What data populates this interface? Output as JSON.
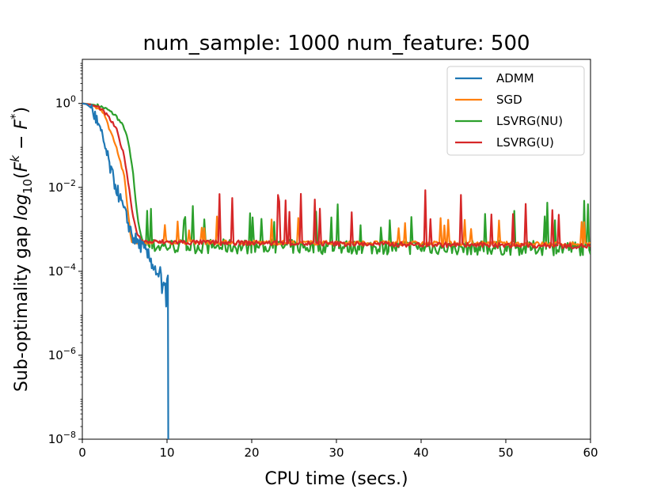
{
  "chart_data": {
    "type": "line",
    "title": "num_sample: 1000 num_feature: 500",
    "xlabel": "CPU time (secs.)",
    "ylabel_prefix": "Sub-optimality gap ",
    "ylabel_math": "log10(F^k − F^*)",
    "xlim": [
      0,
      60
    ],
    "ylim_log10": [
      -8,
      1.05
    ],
    "xticks": [
      0,
      10,
      20,
      30,
      40,
      50,
      60
    ],
    "yticks_exp": [
      0,
      -2,
      -4,
      -6,
      -8
    ],
    "legend_position": "top-right",
    "series": [
      {
        "name": "ADMM",
        "color": "#1f77b4",
        "style": "admm",
        "points": [
          [
            0,
            0
          ],
          [
            0.5,
            -0.02
          ],
          [
            1,
            -0.1
          ],
          [
            1.5,
            -0.3
          ],
          [
            2,
            -0.6
          ],
          [
            2.5,
            -0.9
          ],
          [
            3,
            -1.3
          ],
          [
            3.5,
            -1.7
          ],
          [
            4,
            -2.0
          ],
          [
            4.5,
            -2.3
          ],
          [
            5,
            -2.6
          ],
          [
            5.5,
            -2.9
          ],
          [
            6,
            -3.2
          ],
          [
            7,
            -3.4
          ],
          [
            8,
            -3.7
          ],
          [
            9,
            -4.1
          ],
          [
            9.5,
            -4.4
          ],
          [
            10,
            -4.7
          ],
          [
            10.1,
            -8.2
          ]
        ]
      },
      {
        "name": "SGD",
        "color": "#ff7f0e",
        "style": "sgd",
        "points": [
          [
            0,
            0
          ],
          [
            1,
            -0.03
          ],
          [
            2,
            -0.12
          ],
          [
            2.5,
            -0.2
          ],
          [
            3,
            -0.5
          ],
          [
            4,
            -1.0
          ],
          [
            5,
            -1.8
          ],
          [
            5.5,
            -2.8
          ],
          [
            5.8,
            -3.3
          ],
          [
            6,
            -3.3
          ],
          [
            60,
            -3.35
          ]
        ]
      },
      {
        "name": "LSVRG(NU)",
        "color": "#2ca02c",
        "style": "lsvrgnu",
        "points": [
          [
            0,
            0
          ],
          [
            1,
            -0.02
          ],
          [
            2,
            -0.06
          ],
          [
            3,
            -0.15
          ],
          [
            4,
            -0.3
          ],
          [
            5,
            -0.6
          ],
          [
            5.5,
            -1.0
          ],
          [
            6,
            -1.7
          ],
          [
            6.5,
            -2.7
          ],
          [
            7,
            -3.2
          ],
          [
            7.5,
            -3.4
          ],
          [
            60,
            -3.45
          ]
        ]
      },
      {
        "name": "LSVRG(U)",
        "color": "#d62728",
        "style": "lsvrgu",
        "points": [
          [
            0,
            0
          ],
          [
            1,
            -0.03
          ],
          [
            2,
            -0.1
          ],
          [
            3,
            -0.3
          ],
          [
            4,
            -0.6
          ],
          [
            5,
            -1.3
          ],
          [
            5.5,
            -2.0
          ],
          [
            6,
            -2.7
          ],
          [
            6.5,
            -3.1
          ],
          [
            7,
            -3.3
          ],
          [
            60,
            -3.4
          ]
        ]
      }
    ]
  }
}
